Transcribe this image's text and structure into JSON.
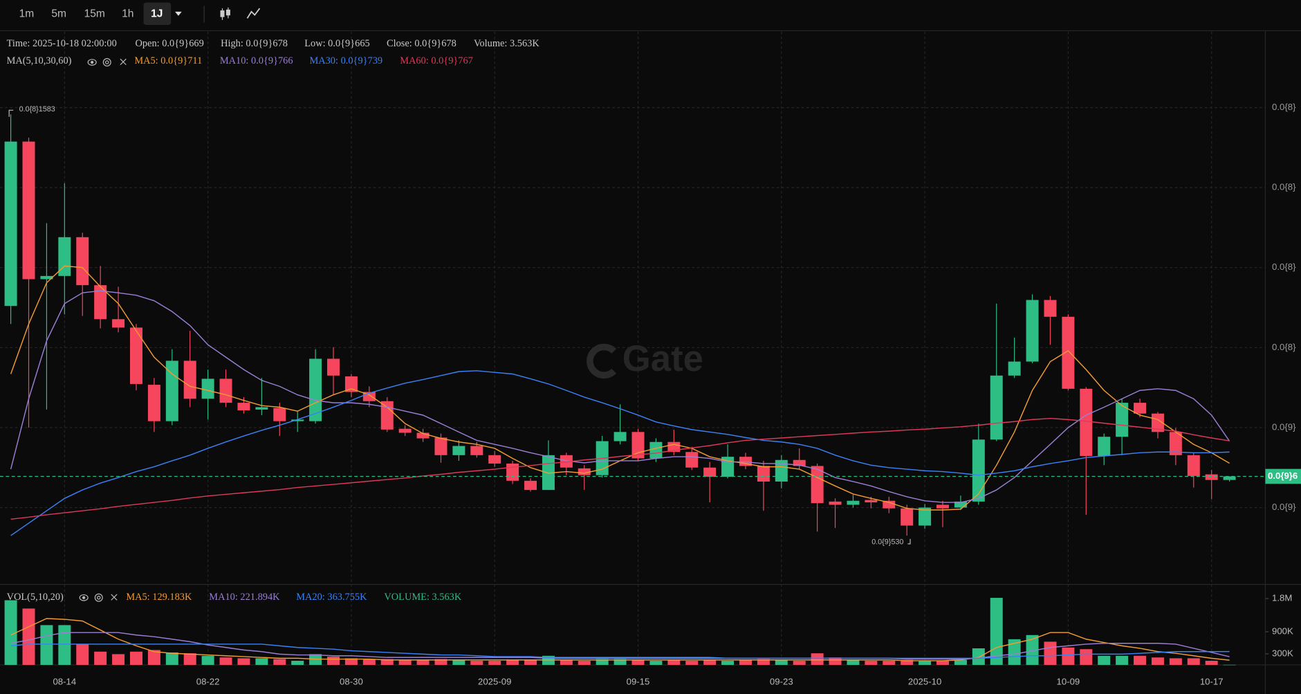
{
  "toolbar": {
    "intervals": [
      "1m",
      "5m",
      "15m",
      "1h",
      "1J"
    ],
    "active": 4
  },
  "chart_data": {
    "type": "candlestick",
    "info": [
      "Time: 2025-10-18 02:00:00",
      "Open: 0.0{9}669",
      "High: 0.0{9}678",
      "Low: 0.0{9}665",
      "Close: 0.0{9}678",
      "Volume: 3.563K"
    ],
    "indicator_label": "MA(5,10,30,60)",
    "watermark": "Gate",
    "categories": [
      null,
      null,
      null,
      "08-14",
      null,
      null,
      null,
      null,
      null,
      null,
      null,
      "08-22",
      null,
      null,
      null,
      null,
      null,
      null,
      null,
      "08-30",
      null,
      null,
      null,
      null,
      null,
      null,
      null,
      "2025-09",
      null,
      null,
      null,
      null,
      null,
      null,
      null,
      "09-15",
      null,
      null,
      null,
      null,
      null,
      null,
      null,
      "09-23",
      null,
      null,
      null,
      null,
      null,
      null,
      null,
      "2025-10",
      null,
      null,
      null,
      null,
      null,
      null,
      null,
      "10-09",
      null,
      null,
      null,
      null,
      null,
      null,
      null,
      "10-17",
      null
    ],
    "candles": {
      "open": [
        1104,
        1515,
        1171,
        1179,
        1276,
        1156,
        1071,
        1050,
        907,
        816,
        967,
        872,
        922,
        862,
        845,
        849,
        816,
        816,
        972,
        928,
        889,
        866,
        797,
        787,
        775,
        731,
        754,
        731,
        710,
        667,
        644,
        731,
        698,
        681,
        766,
        789,
        723,
        764,
        739,
        700,
        677,
        727,
        704,
        665,
        719,
        704,
        615,
        607,
        619,
        617,
        598,
        555,
        607,
        600,
        615,
        770,
        930,
        965,
        1119,
        1077,
        897,
        729,
        777,
        862,
        835,
        789,
        731,
        683,
        669
      ],
      "high": [
        1583,
        1525,
        1311,
        1411,
        1287,
        1204,
        1152,
        1059,
        924,
        996,
        1042,
        945,
        945,
        876,
        924,
        862,
        841,
        996,
        1001,
        934,
        903,
        876,
        806,
        797,
        785,
        768,
        764,
        741,
        717,
        673,
        768,
        737,
        706,
        779,
        858,
        797,
        773,
        795,
        752,
        714,
        758,
        737,
        717,
        731,
        748,
        710,
        623,
        632,
        627,
        627,
        607,
        609,
        617,
        630,
        810,
        1110,
        1025,
        1133,
        1129,
        1083,
        901,
        785,
        872,
        872,
        839,
        799,
        737,
        694,
        678
      ],
      "low": [
        1059,
        800,
        845,
        1083,
        1079,
        1048,
        1038,
        893,
        789,
        806,
        851,
        820,
        851,
        835,
        831,
        779,
        789,
        810,
        882,
        876,
        851,
        789,
        779,
        764,
        712,
        717,
        725,
        702,
        659,
        640,
        644,
        681,
        644,
        675,
        758,
        717,
        714,
        731,
        694,
        613,
        673,
        696,
        592,
        648,
        696,
        540,
        549,
        600,
        598,
        586,
        530,
        547,
        551,
        594,
        607,
        766,
        924,
        961,
        1007,
        893,
        582,
        706,
        731,
        826,
        773,
        706,
        650,
        621,
        665
      ],
      "close": [
        1515,
        1171,
        1179,
        1276,
        1156,
        1071,
        1050,
        909,
        816,
        967,
        872,
        922,
        862,
        843,
        851,
        816,
        820,
        972,
        930,
        889,
        866,
        795,
        787,
        773,
        731,
        754,
        731,
        710,
        667,
        644,
        731,
        700,
        681,
        766,
        789,
        723,
        764,
        739,
        700,
        677,
        727,
        704,
        665,
        719,
        704,
        611,
        607,
        617,
        613,
        598,
        555,
        600,
        598,
        615,
        770,
        930,
        965,
        1119,
        1077,
        897,
        729,
        777,
        862,
        835,
        789,
        731,
        679,
        669,
        678
      ]
    },
    "up_color": "#2ebd85",
    "down_color": "#f6465d",
    "ylim": [
      410,
      1790
    ],
    "yticks": [
      {
        "value": 600,
        "label": "0.0{9}"
      },
      {
        "value": 800,
        "label": "0.0{9}"
      },
      {
        "value": 1000,
        "label": "0.0{8}"
      },
      {
        "value": 1200,
        "label": "0.0{8}"
      },
      {
        "value": 1400,
        "label": "0.0{8}"
      },
      {
        "value": 1600,
        "label": "0.0{8}"
      }
    ],
    "grid": true,
    "current_price_label": "0.0{9}6",
    "annotations": [
      {
        "value": 1583,
        "label": "0.0{8}1583"
      },
      {
        "value": 530,
        "label": "0.0{9}530"
      }
    ],
    "series": [
      {
        "name": "MA5",
        "legend": "MA5: 0.0{9}711",
        "color": "#f39c32",
        "values": [
          934,
          1059,
          1162,
          1204,
          1200,
          1152,
          1110,
          1042,
          976,
          934,
          903,
          893,
          882,
          868,
          855,
          851,
          841,
          862,
          882,
          897,
          882,
          851,
          810,
          785,
          773,
          764,
          758,
          748,
          723,
          700,
          686,
          690,
          686,
          696,
          717,
          737,
          748,
          758,
          748,
          727,
          717,
          710,
          702,
          702,
          696,
          675,
          654,
          634,
          623,
          613,
          598,
          594,
          594,
          596,
          634,
          706,
          789,
          893,
          965,
          992,
          945,
          893,
          855,
          831,
          820,
          789,
          758,
          737,
          711
        ]
      },
      {
        "name": "MA10",
        "legend": "MA10: 0.0{9}766",
        "color": "#9b7fd4",
        "values": [
          696,
          872,
          1017,
          1110,
          1137,
          1142,
          1137,
          1131,
          1117,
          1090,
          1055,
          1007,
          976,
          945,
          918,
          903,
          882,
          868,
          862,
          862,
          858,
          851,
          841,
          831,
          810,
          789,
          768,
          758,
          748,
          737,
          727,
          717,
          712,
          717,
          717,
          717,
          723,
          727,
          727,
          723,
          714,
          714,
          710,
          710,
          706,
          696,
          675,
          665,
          654,
          640,
          627,
          617,
          613,
          613,
          623,
          644,
          675,
          717,
          758,
          800,
          831,
          851,
          872,
          893,
          897,
          893,
          872,
          831,
          766
        ]
      },
      {
        "name": "MA30",
        "legend": "MA30: 0.0{9}739",
        "color": "#3b82f6",
        "values": [
          530,
          561,
          592,
          623,
          644,
          661,
          675,
          690,
          702,
          717,
          731,
          748,
          764,
          779,
          793,
          806,
          820,
          835,
          851,
          868,
          886,
          899,
          911,
          920,
          930,
          940,
          942,
          938,
          934,
          922,
          909,
          893,
          876,
          862,
          847,
          831,
          814,
          804,
          795,
          789,
          783,
          775,
          768,
          764,
          758,
          748,
          731,
          717,
          706,
          700,
          696,
          692,
          690,
          686,
          681,
          686,
          692,
          702,
          710,
          717,
          725,
          729,
          733,
          737,
          739,
          739,
          737,
          737,
          739
        ]
      },
      {
        "name": "MA60",
        "legend": "MA60: 0.0{9}767",
        "color": "#e0395a",
        "values": [
          571,
          576,
          582,
          587,
          592,
          597,
          603,
          608,
          613,
          618,
          624,
          629,
          633,
          637,
          641,
          645,
          650,
          654,
          658,
          662,
          666,
          670,
          674,
          679,
          683,
          688,
          692,
          696,
          701,
          705,
          710,
          714,
          719,
          723,
          728,
          732,
          736,
          743,
          749,
          755,
          762,
          768,
          771,
          774,
          777,
          780,
          783,
          786,
          789,
          791,
          794,
          796,
          799,
          802,
          806,
          811,
          815,
          820,
          823,
          820,
          816,
          811,
          806,
          801,
          796,
          791,
          782,
          774,
          767
        ]
      }
    ],
    "volume": {
      "label": "VOL(5,10,20)",
      "legend": "VOLUME: 3.563K",
      "legend_color": "#2ebd85",
      "values": [
        1755000,
        1530000,
        1080000,
        1080000,
        562000,
        360000,
        292000,
        360000,
        405000,
        337000,
        315000,
        247000,
        202000,
        180000,
        180000,
        157000,
        112000,
        292000,
        225000,
        180000,
        157000,
        157000,
        135000,
        135000,
        157000,
        135000,
        112000,
        112000,
        135000,
        135000,
        247000,
        135000,
        112000,
        157000,
        157000,
        135000,
        112000,
        135000,
        112000,
        135000,
        112000,
        135000,
        157000,
        135000,
        112000,
        315000,
        202000,
        135000,
        112000,
        112000,
        135000,
        112000,
        112000,
        135000,
        450000,
        1820000,
        697000,
        810000,
        630000,
        472000,
        427000,
        247000,
        247000,
        247000,
        202000,
        180000,
        180000,
        112000,
        3563
      ],
      "ylim": [
        0,
        2140000
      ],
      "yticks": [
        {
          "value": 300000,
          "label": "300K"
        },
        {
          "value": 900000,
          "label": "900K"
        },
        {
          "value": 1800000,
          "label": "1.8M"
        }
      ],
      "series": [
        {
          "name": "MA5",
          "legend": "MA5: 129.183K",
          "color": "#f39c32",
          "values": [
            810000,
            1035000,
            1260000,
            1237500,
            1192500,
            945000,
            697500,
            517500,
            360000,
            315000,
            292500,
            270000,
            247500,
            225000,
            202500,
            180000,
            180000,
            157500,
            157500,
            157500,
            157500,
            135000,
            135000,
            135000,
            135000,
            135000,
            135000,
            135000,
            135000,
            135000,
            135000,
            135000,
            135000,
            135000,
            135000,
            135000,
            135000,
            135000,
            135000,
            135000,
            135000,
            135000,
            135000,
            135000,
            135000,
            135000,
            135000,
            135000,
            135000,
            135000,
            112500,
            112500,
            112500,
            135000,
            202500,
            472500,
            585000,
            697500,
            877500,
            877500,
            697500,
            607500,
            517500,
            450000,
            360000,
            315000,
            247500,
            180000,
            129183
          ]
        },
        {
          "name": "MA10",
          "legend": "MA10: 221.894K",
          "color": "#9b7fd4",
          "values": [
            585000,
            675000,
            787500,
            877500,
            877500,
            877500,
            877500,
            810000,
            765000,
            697500,
            630000,
            540000,
            472500,
            405000,
            360000,
            292500,
            270000,
            270000,
            247500,
            247500,
            225000,
            202500,
            202500,
            202500,
            202500,
            202500,
            202500,
            202500,
            202500,
            202500,
            180000,
            180000,
            180000,
            180000,
            180000,
            180000,
            180000,
            180000,
            180000,
            180000,
            180000,
            180000,
            180000,
            180000,
            180000,
            180000,
            180000,
            180000,
            180000,
            180000,
            157500,
            157500,
            157500,
            157500,
            180000,
            247500,
            292500,
            382500,
            472500,
            517500,
            562500,
            585000,
            585000,
            585000,
            585000,
            562500,
            450000,
            337500,
            221894
          ]
        },
        {
          "name": "MA20",
          "legend": "MA20: 363.755K",
          "color": "#3b82f6",
          "values": [
            517500,
            562500,
            562500,
            562500,
            562500,
            562500,
            562500,
            562500,
            562500,
            562500,
            562500,
            562500,
            562500,
            562500,
            562500,
            517500,
            472500,
            450000,
            427500,
            382500,
            360000,
            337500,
            315000,
            292500,
            270000,
            270000,
            247500,
            225000,
            225000,
            225000,
            202500,
            202500,
            202500,
            202500,
            202500,
            202500,
            202500,
            202500,
            202500,
            202500,
            180000,
            180000,
            180000,
            180000,
            180000,
            180000,
            180000,
            180000,
            180000,
            180000,
            180000,
            180000,
            180000,
            180000,
            180000,
            202500,
            225000,
            247500,
            247500,
            270000,
            292500,
            292500,
            292500,
            315000,
            337500,
            360000,
            360000,
            360000,
            363755
          ]
        }
      ]
    }
  }
}
